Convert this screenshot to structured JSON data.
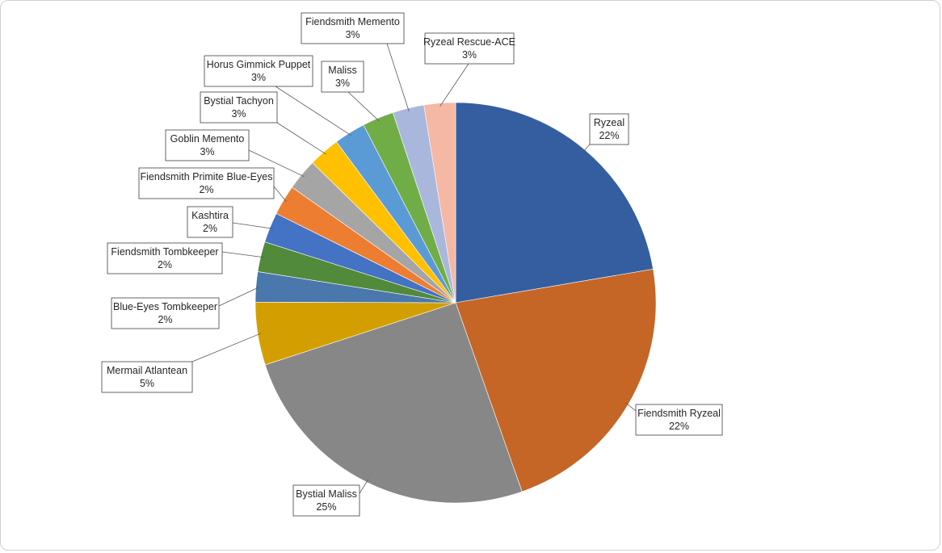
{
  "chart_data": {
    "type": "pie",
    "title": "",
    "start_angle_deg": 0,
    "direction": "clockwise",
    "legend": "none",
    "data_labels": "category-and-percent with leader lines",
    "slices": [
      {
        "label": "Ryzeal",
        "percent_label": "22%",
        "value": 22,
        "color": "#355EA1"
      },
      {
        "label": "Fiendsmith Ryzeal",
        "percent_label": "22%",
        "value": 22,
        "color": "#C56526"
      },
      {
        "label": "Bystial Maliss",
        "percent_label": "25%",
        "value": 25,
        "color": "#878787"
      },
      {
        "label": "Mermail Atlantean",
        "percent_label": "5%",
        "value": 5,
        "color": "#D39F00"
      },
      {
        "label": "Blue-Eyes Tombkeeper",
        "percent_label": "2%",
        "value": 2.4,
        "color": "#4A78AC"
      },
      {
        "label": "Fiendsmith Tombkeeper",
        "percent_label": "2%",
        "value": 2.4,
        "color": "#528A3B"
      },
      {
        "label": "Kashtira",
        "percent_label": "2%",
        "value": 2.4,
        "color": "#4472C4"
      },
      {
        "label": "Fiendsmith Primite Blue-Eyes",
        "percent_label": "2%",
        "value": 2.4,
        "color": "#ED7D31"
      },
      {
        "label": "Goblin Memento",
        "percent_label": "3%",
        "value": 2.5,
        "color": "#A5A5A5"
      },
      {
        "label": "Bystial Tachyon",
        "percent_label": "3%",
        "value": 2.5,
        "color": "#FFC000"
      },
      {
        "label": "Horus Gimmick Puppet",
        "percent_label": "3%",
        "value": 2.5,
        "color": "#5B9BD5"
      },
      {
        "label": "Maliss",
        "percent_label": "3%",
        "value": 2.5,
        "color": "#70AD47"
      },
      {
        "label": "Fiendsmith Memento",
        "percent_label": "3%",
        "value": 2.5,
        "color": "#A9B7DD"
      },
      {
        "label": "Ryzeal Rescue-ACE",
        "percent_label": "3%",
        "value": 2.5,
        "color": "#F5B8A4"
      }
    ]
  }
}
